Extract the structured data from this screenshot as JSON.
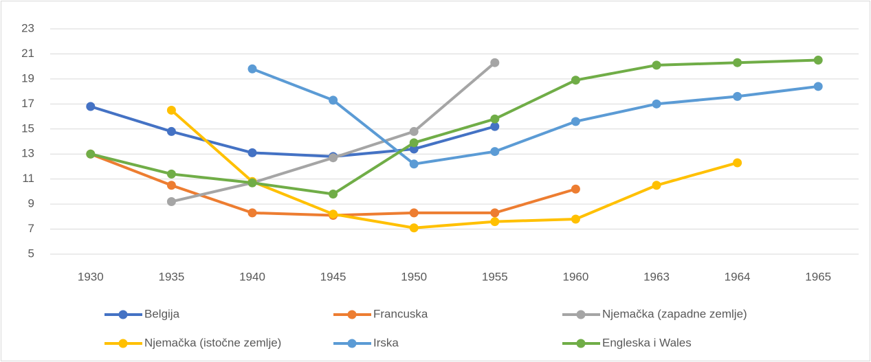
{
  "chart_data": {
    "type": "line",
    "categories": [
      "1930",
      "1935",
      "1940",
      "1945",
      "1950",
      "1955",
      "1960",
      "1963",
      "1964",
      "1965"
    ],
    "series": [
      {
        "name": "Belgija",
        "color": "#4472c4",
        "values": [
          16.8,
          14.8,
          13.1,
          12.8,
          13.4,
          15.2,
          null,
          null,
          null,
          null
        ]
      },
      {
        "name": "Francuska",
        "color": "#ed7d31",
        "values": [
          13.0,
          10.5,
          8.3,
          8.1,
          8.3,
          8.3,
          10.2,
          null,
          null,
          null
        ]
      },
      {
        "name": "Njemačka (zapadne zemlje)",
        "color": "#a5a5a5",
        "values": [
          null,
          9.2,
          10.7,
          12.7,
          14.8,
          20.3,
          null,
          null,
          null,
          null
        ]
      },
      {
        "name": "Njemačka (istočne zemlje)",
        "color": "#ffc000",
        "values": [
          null,
          16.5,
          10.8,
          8.2,
          7.1,
          7.6,
          7.8,
          10.5,
          12.3,
          null
        ]
      },
      {
        "name": "Irska",
        "color": "#5b9bd5",
        "values": [
          null,
          null,
          19.8,
          17.3,
          12.2,
          13.2,
          15.6,
          17.0,
          17.6,
          18.4
        ]
      },
      {
        "name": "Engleska i Wales",
        "color": "#70ad47",
        "values": [
          13.0,
          11.4,
          10.7,
          9.8,
          13.9,
          15.8,
          18.9,
          20.1,
          20.3,
          20.5
        ]
      }
    ],
    "ylim": [
      5,
      23
    ],
    "yticks": [
      5,
      7,
      9,
      11,
      13,
      15,
      17,
      19,
      21,
      23
    ],
    "grid": true,
    "legend": "bottom"
  }
}
